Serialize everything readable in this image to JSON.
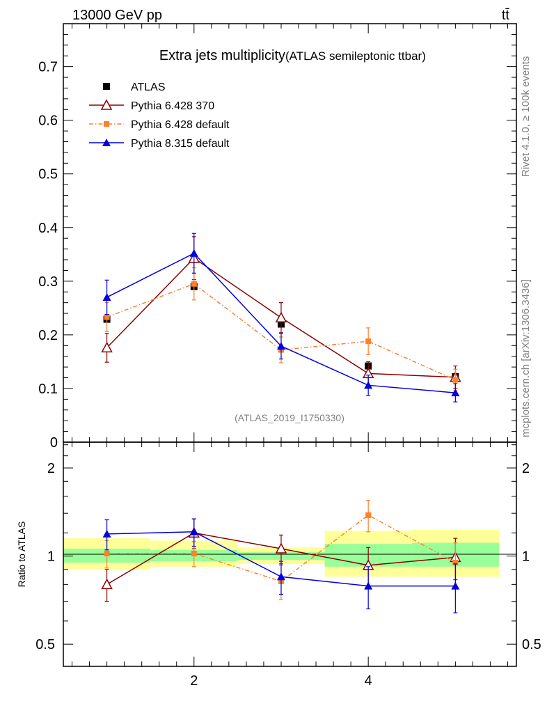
{
  "header": {
    "left": "13000 GeV pp",
    "right": "tt̄"
  },
  "side_labels": {
    "rivet": "Rivet 4.1.0, ≥ 100k events",
    "site": "mcplots.cern.ch [arXiv:1306.3436]"
  },
  "chart_data": [
    {
      "type": "line",
      "panel": "main",
      "title": "Extra jets multiplicity",
      "subtitle": "(ATLAS semileptonic ttbar)",
      "watermark": "(ATLAS_2019_I1750330)",
      "xlabel": "",
      "ylabel": "",
      "xlim": [
        0.5,
        5.7
      ],
      "ylim": [
        0,
        0.78
      ],
      "yticks": [
        0,
        0.1,
        0.2,
        0.3,
        0.4,
        0.5,
        0.6,
        0.7
      ],
      "ytick_labels": [
        "0",
        "0.1",
        "0.2",
        "0.3",
        "0.4",
        "0.5",
        "0.6",
        "0.7"
      ],
      "legend_position": "top-left",
      "series": [
        {
          "name": "ATLAS",
          "style": "data",
          "color": "#000000",
          "marker": "square",
          "x": [
            1,
            2,
            3,
            4,
            5
          ],
          "values": [
            0.229,
            0.29,
            0.22,
            0.142,
            0.122
          ],
          "errors": [
            0.003,
            0.004,
            0.004,
            0.004,
            0.004
          ]
        },
        {
          "name": "Pythia 6.428 370",
          "style": "solid",
          "color": "#8b0000",
          "marker": "open-triangle",
          "x": [
            1,
            2,
            3,
            4,
            5
          ],
          "values": [
            0.176,
            0.343,
            0.232,
            0.128,
            0.121
          ],
          "errors": [
            0.027,
            0.04,
            0.028,
            0.022,
            0.021
          ]
        },
        {
          "name": "Pythia 6.428 default",
          "style": "dashdot",
          "color": "#ff7f2a",
          "marker": "small-square",
          "x": [
            1,
            2,
            3,
            4,
            5
          ],
          "values": [
            0.233,
            0.295,
            0.172,
            0.188,
            0.116
          ],
          "errors": [
            0.027,
            0.03,
            0.024,
            0.025,
            0.02
          ]
        },
        {
          "name": "Pythia 8.315 default",
          "style": "solid",
          "color": "#0000e0",
          "marker": "filled-triangle",
          "x": [
            1,
            2,
            3,
            4,
            5
          ],
          "values": [
            0.27,
            0.352,
            0.179,
            0.106,
            0.092
          ],
          "errors": [
            0.032,
            0.037,
            0.024,
            0.019,
            0.017
          ]
        }
      ]
    },
    {
      "type": "line",
      "panel": "ratio",
      "ylabel": "Ratio to ATLAS",
      "yscale": "log",
      "ylim": [
        0.42,
        2.45
      ],
      "yticks": [
        0.5,
        1,
        2
      ],
      "ytick_labels": [
        "0.5",
        "1",
        "2"
      ],
      "xticks": [
        2,
        4
      ],
      "xtick_labels": [
        "2",
        "4"
      ],
      "bands": {
        "bin_edges": [
          0.5,
          1.5,
          2.5,
          3.5,
          4.5,
          5.5
        ],
        "green": [
          [
            0.95,
            1.06
          ],
          [
            0.96,
            1.05
          ],
          [
            0.97,
            1.03
          ],
          [
            0.92,
            1.1
          ],
          [
            0.92,
            1.11
          ]
        ],
        "yellow": [
          [
            0.9,
            1.15
          ],
          [
            0.92,
            1.13
          ],
          [
            0.94,
            1.07
          ],
          [
            0.85,
            1.22
          ],
          [
            0.85,
            1.23
          ]
        ]
      },
      "series": [
        {
          "name": "Pythia 6.428 370",
          "color": "#8b0000",
          "marker": "open-triangle",
          "style": "solid",
          "x": [
            1,
            2,
            3,
            4,
            5
          ],
          "values": [
            0.8,
            1.2,
            1.06,
            0.93,
            0.99
          ],
          "errors": [
            0.1,
            0.14,
            0.12,
            0.14,
            0.16
          ]
        },
        {
          "name": "Pythia 6.428 default",
          "color": "#ff7f2a",
          "marker": "small-square",
          "style": "dashdot",
          "x": [
            1,
            2,
            3,
            4,
            5
          ],
          "values": [
            1.02,
            1.02,
            0.82,
            1.38,
            0.95
          ],
          "errors": [
            0.11,
            0.1,
            0.11,
            0.17,
            0.16
          ]
        },
        {
          "name": "Pythia 8.315 default",
          "color": "#0000e0",
          "marker": "filled-triangle",
          "style": "solid",
          "x": [
            1,
            2,
            3,
            4,
            5
          ],
          "values": [
            1.19,
            1.21,
            0.85,
            0.79,
            0.79
          ],
          "errors": [
            0.14,
            0.13,
            0.11,
            0.13,
            0.15
          ]
        }
      ]
    }
  ]
}
